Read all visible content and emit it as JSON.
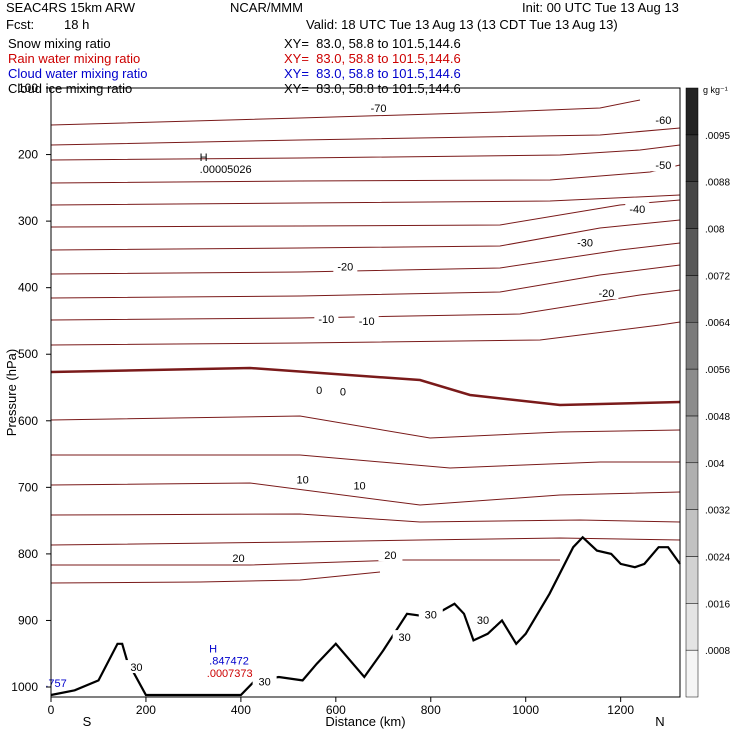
{
  "header": {
    "model": "SEAC4RS 15km ARW",
    "center": "NCAR/MMM",
    "init": "Init: 00 UTC Tue 13 Aug 13",
    "fcst_label": "Fcst:",
    "fcst_value": "18 h",
    "valid": "Valid: 18 UTC Tue 13 Aug 13 (13 CDT Tue 13 Aug 13)"
  },
  "fields": [
    {
      "label": "Snow mixing ratio",
      "xy": "XY=  83.0, 58.8 to 101.5,144.6",
      "color": "#000000"
    },
    {
      "label": "Rain water mixing ratio",
      "xy": "XY=  83.0, 58.8 to 101.5,144.6",
      "color": "#cc0000"
    },
    {
      "label": "Cloud water mixing ratio",
      "xy": "XY=  83.0, 58.8 to 101.5,144.6",
      "color": "#0000cc"
    },
    {
      "label": "Cloud ice mixing ratio",
      "xy": "XY=  83.0, 58.8 to 101.5,144.6",
      "color": "#000000"
    }
  ],
  "colorbar": {
    "units": "g kg⁻¹",
    "levels": [
      ".0008",
      ".0016",
      ".0024",
      ".0032",
      ".004",
      ".0048",
      ".0056",
      ".0064",
      ".0072",
      ".008",
      ".0088",
      ".0095"
    ]
  },
  "chart_data": {
    "type": "line",
    "title": "",
    "xlabel": "Distance (km)",
    "ylabel": "Pressure (hPa)",
    "xlim": [
      0,
      1325
    ],
    "ylim": [
      1015,
      100
    ],
    "x_ticks": [
      "0",
      "200",
      "400",
      "600",
      "800",
      "1000",
      "1200"
    ],
    "y_ticks": [
      "100",
      "200",
      "300",
      "400",
      "500",
      "600",
      "700",
      "800",
      "900",
      "1000"
    ],
    "end_labels": {
      "left": "S",
      "right": "N"
    },
    "isotherm_labels": [
      {
        "text": "-70",
        "x": 690,
        "p": 130
      },
      {
        "text": "-60",
        "x": 1290,
        "p": 148
      },
      {
        "text": "-50",
        "x": 1290,
        "p": 216
      },
      {
        "text": "-40",
        "x": 1235,
        "p": 282
      },
      {
        "text": "-30",
        "x": 1125,
        "p": 332
      },
      {
        "text": "-20",
        "x": 620,
        "p": 368
      },
      {
        "text": "-20",
        "x": 1170,
        "p": 408
      },
      {
        "text": "-10",
        "x": 580,
        "p": 447
      },
      {
        "text": "-10",
        "x": 665,
        "p": 450
      },
      {
        "text": "0",
        "x": 565,
        "p": 554
      },
      {
        "text": "0",
        "x": 615,
        "p": 556
      },
      {
        "text": "10",
        "x": 530,
        "p": 688
      },
      {
        "text": "10",
        "x": 650,
        "p": 697
      },
      {
        "text": "20",
        "x": 395,
        "p": 806
      },
      {
        "text": "20",
        "x": 715,
        "p": 802
      },
      {
        "text": "30",
        "x": 180,
        "p": 970
      },
      {
        "text": "30",
        "x": 450,
        "p": 992
      },
      {
        "text": "30",
        "x": 745,
        "p": 925
      },
      {
        "text": "30",
        "x": 800,
        "p": 891
      },
      {
        "text": "30",
        "x": 910,
        "p": 899
      }
    ],
    "max_labels": [
      {
        "marker": "H",
        "value": ".00005026",
        "x": 330,
        "p": 228,
        "color": "#000000"
      },
      {
        "marker": "H",
        "value": ".847472",
        "x": 350,
        "p": 966,
        "color": "#0000cc"
      },
      {
        "marker": "",
        "value": ".0007373",
        "x": 345,
        "p": 985,
        "color": "#cc0000"
      },
      {
        "marker": "",
        "value": ".757",
        "x": 5,
        "p": 1000,
        "color": "#0000cc"
      }
    ],
    "series": [
      {
        "x": [
          0,
          50,
          100,
          140,
          150,
          160,
          200,
          300,
          400,
          430,
          480,
          530,
          560,
          600,
          660,
          700,
          750,
          800,
          850,
          870,
          890,
          920,
          950,
          980,
          1000,
          1050,
          1100,
          1120,
          1150,
          1180,
          1200,
          1230,
          1250,
          1280,
          1300,
          1325
        ],
        "values": [
          1012,
          1005,
          990,
          935,
          935,
          960,
          1012,
          1012,
          1012,
          990,
          985,
          990,
          965,
          935,
          985,
          945,
          890,
          895,
          875,
          890,
          930,
          920,
          900,
          935,
          920,
          860,
          790,
          775,
          795,
          800,
          815,
          820,
          815,
          790,
          790,
          815
        ]
      }
    ]
  }
}
